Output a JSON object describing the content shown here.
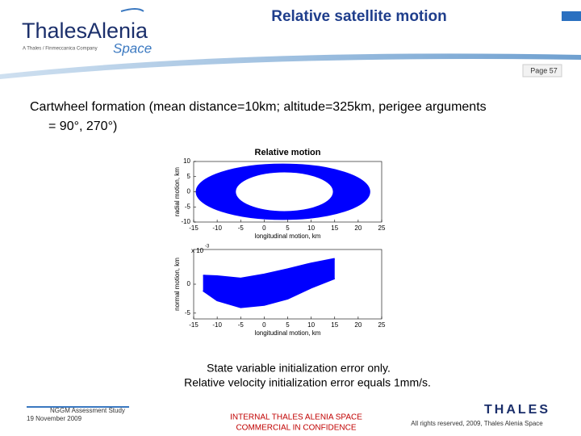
{
  "header": {
    "title": "Relative satellite motion",
    "logo": "ThalesAlenia",
    "logo_space": "Space",
    "logo_tagline": "A Thales / Finmeccanica Company",
    "page": "Page 57"
  },
  "body": {
    "lines": [
      "Cartwheel formation (mean distance=10km; altitude=325km, perigee arguments",
      "= 90°, 270°)"
    ],
    "caption": [
      "State variable initialization error only.",
      "Relative velocity initialization error equals 1mm/s."
    ]
  },
  "chart_data": [
    {
      "type": "ring",
      "title": "Relative motion",
      "xlabel": "longitudinal motion, km",
      "ylabel": "radial motion, km",
      "xlim": [
        -15,
        25
      ],
      "ylim": [
        -10,
        10
      ],
      "xticks": [
        -15,
        -10,
        -5,
        0,
        5,
        10,
        15,
        20,
        25
      ],
      "yticks": [
        10,
        5,
        0,
        -5,
        -10
      ],
      "color": "#0000ff",
      "outer": {
        "cx": 4,
        "cy": 0,
        "rx": 18.5,
        "ry": 9.2
      },
      "inner": {
        "cx": 4.3,
        "cy": 0,
        "rx": 10.4,
        "ry": 6.5
      }
    },
    {
      "type": "band",
      "xlabel": "longitudinal motion, km",
      "ylabel": "normal motion, km",
      "y_multiplier": "x 10",
      "y_exponent": "-3",
      "xlim": [
        -15,
        25
      ],
      "ylim": [
        -6,
        6
      ],
      "xticks": [
        -15,
        -10,
        -5,
        0,
        5,
        10,
        15,
        20,
        25
      ],
      "yticks": [
        0,
        -5
      ],
      "color": "#0000ff",
      "x": [
        -13,
        -10,
        -5,
        0,
        5,
        10,
        15
      ],
      "upper": [
        1.5,
        1.4,
        1,
        1.7,
        2.6,
        3.6,
        4.4
      ],
      "lower": [
        -1.1,
        -2.8,
        -4,
        -3.6,
        -2.5,
        -0.6,
        1
      ]
    }
  ],
  "footer": {
    "study": "NGGM Assessment Study",
    "date": "19 November 2009",
    "confidential": [
      "INTERNAL THALES ALENIA SPACE",
      "COMMERCIAL IN CONFIDENCE"
    ],
    "brand": "THALES",
    "rights": "All rights reserved, 2009, Thales Alenia Space"
  }
}
